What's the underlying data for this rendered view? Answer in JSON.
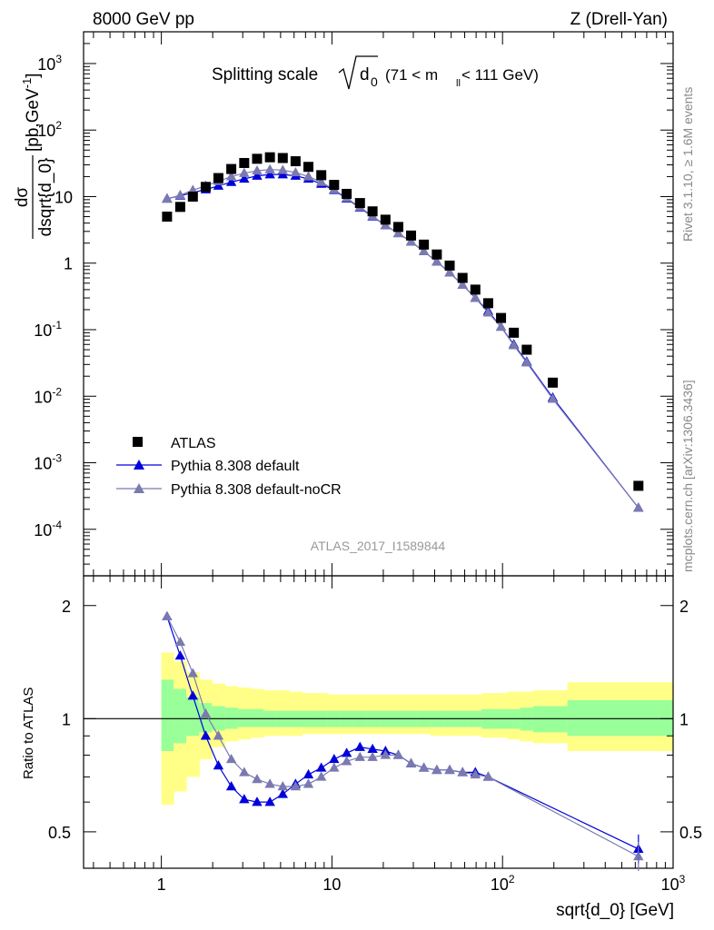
{
  "header": {
    "left": "8000 GeV pp",
    "right": "Z (Drell-Yan)"
  },
  "side": {
    "rivet": "Rivet 3.1.10, ≥ 1.6M events",
    "mcplots": "mcplots.cern.ch [arXiv:1306.3436]"
  },
  "watermark": "ATLAS_2017_I1589844",
  "title": {
    "main": "Splitting scale",
    "sym": "d",
    "sub0": "0",
    "range": "(71 < m",
    "ll": "ll",
    "range2": " < 111 GeV)"
  },
  "ylabel_top": {
    "num": "dσ",
    "den": "dsqrt{d_0}",
    "unit": "[pb,GeV",
    "exp": "-1",
    "close": "]"
  },
  "ylabel_bottom": "Ratio to ATLAS",
  "xlabel": "sqrt{d_0} [GeV]",
  "colors": {
    "atlas": "#000000",
    "pythia_default": "#0000dd",
    "pythia_nocr": "#7a7ab0",
    "band_inner": "#99ff99",
    "band_outer": "#ffff88"
  },
  "top_ticks": {
    "y": [
      {
        "base": "10",
        "exp": "-4"
      },
      {
        "base": "10",
        "exp": "-3"
      },
      {
        "base": "10",
        "exp": "-2"
      },
      {
        "base": "10",
        "exp": "-1"
      },
      {
        "base": "1",
        "exp": ""
      },
      {
        "base": "10",
        "exp": ""
      },
      {
        "base": "10",
        "exp": "2"
      },
      {
        "base": "10",
        "exp": "3"
      }
    ]
  },
  "bottom_ticks": {
    "y": [
      "0.5",
      "1",
      "2"
    ]
  },
  "x_ticks": [
    "1",
    "10",
    "10",
    "10"
  ],
  "x_tick_exps": [
    "",
    "",
    "2",
    "3"
  ],
  "chart_data": [
    {
      "type": "scatter",
      "panel": "main",
      "x_scale": "log",
      "y_scale": "log",
      "xlim": [
        0.35,
        1000
      ],
      "ylim": [
        2e-05,
        3000
      ],
      "legend_position": "bottom-left",
      "series": [
        {
          "name": "ATLAS",
          "x": [
            1.08,
            1.29,
            1.53,
            1.82,
            2.16,
            2.57,
            3.06,
            3.64,
            4.33,
            5.15,
            6.12,
            7.28,
            8.66,
            10.3,
            12.2,
            14.6,
            17.3,
            20.6,
            24.5,
            29.1,
            34.6,
            41.2,
            49.0,
            58.3,
            69.3,
            82.4,
            98.0,
            116.5,
            138.6,
            197.0,
            626.0
          ],
          "y": [
            5.0,
            7.0,
            10.0,
            14.0,
            19.0,
            26.0,
            32.0,
            37.0,
            39.0,
            38.0,
            34.0,
            28.0,
            21.0,
            15.0,
            11.0,
            8.0,
            6.0,
            4.5,
            3.5,
            2.6,
            1.9,
            1.35,
            0.92,
            0.6,
            0.4,
            0.25,
            0.15,
            0.09,
            0.05,
            0.016,
            0.00045
          ]
        },
        {
          "name": "Pythia 8.308 default",
          "x": [
            1.08,
            1.29,
            1.53,
            1.82,
            2.16,
            2.57,
            3.06,
            3.64,
            4.33,
            5.15,
            6.12,
            7.28,
            8.66,
            10.3,
            12.2,
            14.6,
            17.3,
            20.6,
            24.5,
            29.1,
            34.6,
            41.2,
            49.0,
            58.3,
            69.3,
            82.4,
            98.0,
            116.5,
            138.6,
            197.0,
            626.0
          ],
          "y": [
            9.3,
            10.3,
            11.5,
            12.8,
            14.5,
            16.5,
            18.5,
            20.5,
            21.5,
            21.5,
            20.5,
            18.5,
            15.5,
            12.5,
            9.3,
            6.8,
            5.0,
            3.7,
            2.8,
            2.1,
            1.5,
            1.05,
            0.72,
            0.47,
            0.3,
            0.19,
            0.11,
            0.06,
            0.033,
            0.0095,
            0.00021
          ]
        },
        {
          "name": "Pythia 8.308 default-noCR",
          "x": [
            1.08,
            1.29,
            1.53,
            1.82,
            2.16,
            2.57,
            3.06,
            3.64,
            4.33,
            5.15,
            6.12,
            7.28,
            8.66,
            10.3,
            12.2,
            14.6,
            17.3,
            20.6,
            24.5,
            29.1,
            34.6,
            41.2,
            49.0,
            58.3,
            69.3,
            82.4,
            98.0,
            116.5,
            138.6,
            197.0,
            626.0
          ],
          "y": [
            9.2,
            10.5,
            12.5,
            14.5,
            17.0,
            20.0,
            22.5,
            24.5,
            25.5,
            25.0,
            23.0,
            20.0,
            16.5,
            12.8,
            9.5,
            6.9,
            5.1,
            3.7,
            2.8,
            2.1,
            1.5,
            1.05,
            0.72,
            0.47,
            0.3,
            0.18,
            0.11,
            0.058,
            0.032,
            0.0091,
            0.00021
          ]
        }
      ]
    },
    {
      "type": "line",
      "panel": "ratio",
      "x_scale": "log",
      "y_scale": "log",
      "xlim": [
        0.35,
        1000
      ],
      "ylim": [
        0.4,
        2.4
      ],
      "reference_line": 1,
      "bands": {
        "edges": [
          1.0,
          1.18,
          1.4,
          1.67,
          1.98,
          2.36,
          2.81,
          3.34,
          3.97,
          4.72,
          5.62,
          6.68,
          7.94,
          9.44,
          11.2,
          13.4,
          15.9,
          18.9,
          22.5,
          26.7,
          31.8,
          37.8,
          44.9,
          53.4,
          63.5,
          75.5,
          89.8,
          106.8,
          127.0,
          151.0,
          240.0,
          1000.0
        ],
        "inner_lo": [
          0.82,
          0.86,
          0.9,
          0.92,
          0.93,
          0.94,
          0.95,
          0.95,
          0.95,
          0.95,
          0.95,
          0.95,
          0.95,
          0.95,
          0.95,
          0.95,
          0.95,
          0.95,
          0.95,
          0.95,
          0.95,
          0.95,
          0.95,
          0.95,
          0.95,
          0.94,
          0.94,
          0.94,
          0.93,
          0.92,
          0.9
        ],
        "inner_hi": [
          1.27,
          1.2,
          1.14,
          1.1,
          1.08,
          1.07,
          1.06,
          1.06,
          1.05,
          1.05,
          1.05,
          1.05,
          1.05,
          1.05,
          1.05,
          1.05,
          1.05,
          1.05,
          1.05,
          1.05,
          1.05,
          1.05,
          1.05,
          1.05,
          1.05,
          1.06,
          1.06,
          1.06,
          1.07,
          1.08,
          1.12
        ],
        "outer_lo": [
          0.59,
          0.64,
          0.7,
          0.78,
          0.84,
          0.87,
          0.88,
          0.89,
          0.9,
          0.9,
          0.9,
          0.91,
          0.91,
          0.91,
          0.91,
          0.91,
          0.91,
          0.91,
          0.91,
          0.91,
          0.91,
          0.9,
          0.9,
          0.9,
          0.9,
          0.89,
          0.89,
          0.88,
          0.87,
          0.86,
          0.82
        ],
        "outer_hi": [
          1.5,
          1.42,
          1.33,
          1.27,
          1.24,
          1.22,
          1.21,
          1.2,
          1.19,
          1.19,
          1.18,
          1.17,
          1.17,
          1.16,
          1.16,
          1.16,
          1.16,
          1.16,
          1.16,
          1.16,
          1.16,
          1.16,
          1.16,
          1.16,
          1.16,
          1.17,
          1.17,
          1.18,
          1.18,
          1.19,
          1.25
        ]
      },
      "series": [
        {
          "name": "Pythia 8.308 default",
          "x": [
            1.08,
            1.29,
            1.53,
            1.82,
            2.16,
            2.57,
            3.06,
            3.64,
            4.33,
            5.15,
            6.12,
            7.28,
            8.66,
            10.3,
            12.2,
            14.6,
            17.3,
            20.6,
            24.5,
            29.1,
            34.6,
            41.2,
            49.0,
            58.3,
            69.3,
            82.4,
            626.0
          ],
          "y": [
            1.87,
            1.47,
            1.15,
            0.9,
            0.75,
            0.66,
            0.61,
            0.6,
            0.6,
            0.63,
            0.67,
            0.71,
            0.74,
            0.78,
            0.81,
            0.84,
            0.83,
            0.82,
            0.8,
            0.76,
            0.74,
            0.73,
            0.73,
            0.72,
            0.72,
            0.7,
            0.45
          ]
        },
        {
          "name": "Pythia 8.308 default-noCR",
          "x": [
            1.08,
            1.29,
            1.53,
            1.82,
            2.16,
            2.57,
            3.06,
            3.64,
            4.33,
            5.15,
            6.12,
            7.28,
            8.66,
            10.3,
            12.2,
            14.6,
            17.3,
            20.6,
            24.5,
            29.1,
            34.6,
            41.2,
            49.0,
            58.3,
            69.3,
            82.4,
            626.0
          ],
          "y": [
            1.87,
            1.6,
            1.32,
            1.03,
            0.9,
            0.78,
            0.72,
            0.69,
            0.67,
            0.66,
            0.66,
            0.67,
            0.7,
            0.74,
            0.77,
            0.79,
            0.79,
            0.8,
            0.8,
            0.76,
            0.74,
            0.73,
            0.73,
            0.72,
            0.71,
            0.7,
            0.43
          ]
        }
      ]
    }
  ]
}
